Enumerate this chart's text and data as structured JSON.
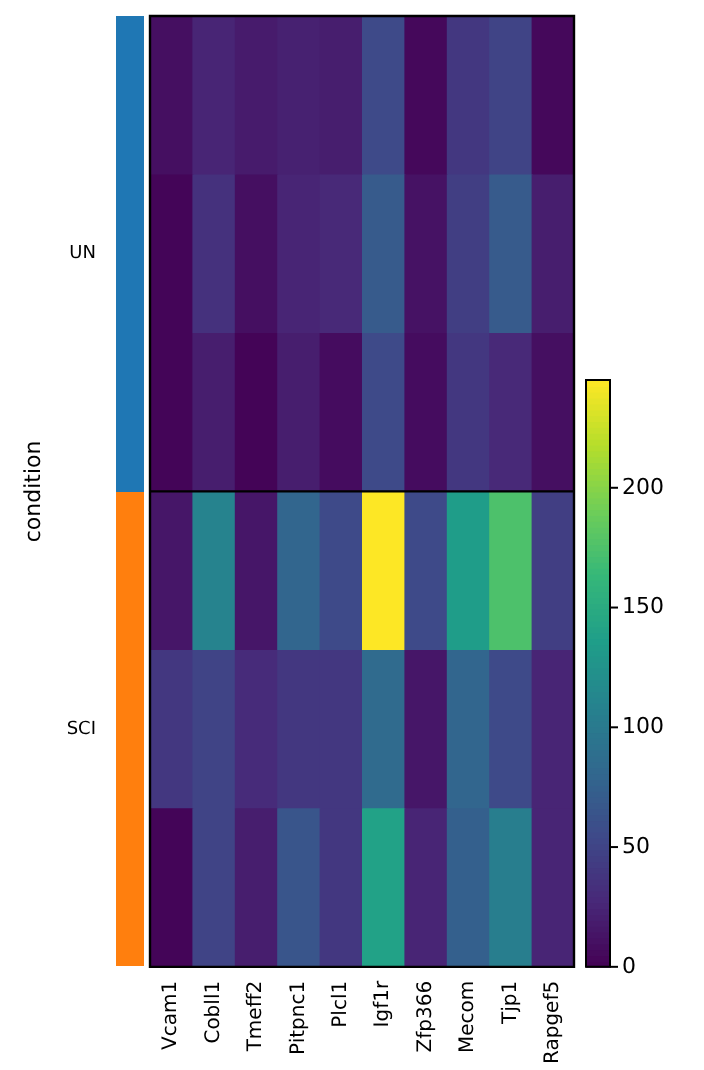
{
  "chart_data": {
    "type": "heatmap",
    "ylabel": "condition",
    "categories": [
      "Vcam1",
      "Cobll1",
      "Tmeff2",
      "Pitpnc1",
      "Plcl1",
      "Igf1r",
      "Zfp366",
      "Mecom",
      "Tjp1",
      "Rapgef5"
    ],
    "y_categories": [
      null,
      null,
      null,
      null,
      null,
      null
    ],
    "cells": [
      [
        10,
        25,
        18,
        22,
        20,
        55,
        5,
        40,
        50,
        5
      ],
      [
        3,
        35,
        10,
        25,
        28,
        70,
        12,
        45,
        70,
        20
      ],
      [
        3,
        20,
        2,
        20,
        8,
        55,
        8,
        40,
        28,
        10
      ],
      [
        15,
        110,
        15,
        80,
        55,
        245,
        55,
        135,
        175,
        45
      ],
      [
        40,
        50,
        30,
        40,
        40,
        85,
        15,
        80,
        55,
        25
      ],
      [
        3,
        50,
        20,
        65,
        40,
        140,
        25,
        75,
        105,
        25
      ]
    ],
    "clim": [
      0,
      245
    ],
    "cticks": [
      0,
      50,
      100,
      150,
      200
    ],
    "annotations": [
      "UN",
      "SCI"
    ]
  }
}
